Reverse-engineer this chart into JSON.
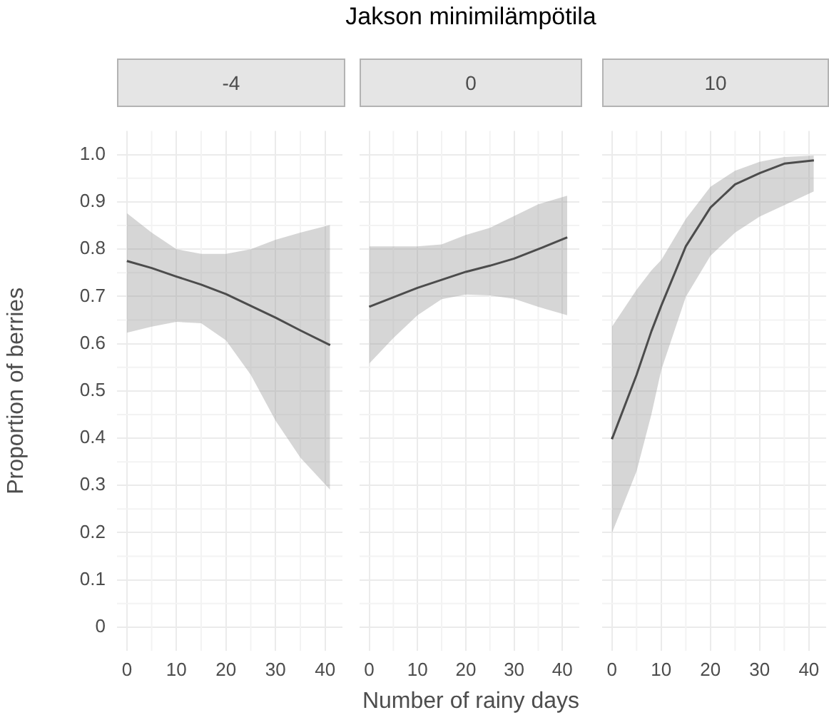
{
  "chart_data": [
    {
      "type": "line",
      "title": "-4",
      "ylabel": "Proportion of berries",
      "grid": true,
      "xlim": [
        -2,
        43.5
      ],
      "xticks": [
        0,
        10,
        20,
        30,
        40
      ],
      "ylim": [
        -0.05,
        1.05
      ],
      "yticks": [
        0,
        0.1,
        0.2,
        0.3,
        0.4,
        0.5,
        0.6,
        0.7,
        0.8,
        0.9,
        {
          "value": 1,
          "label": "1.0"
        }
      ],
      "x": [
        0,
        5,
        10,
        15,
        20,
        25,
        30,
        35,
        41
      ],
      "series": [
        {
          "color": "#1a1a1a",
          "values": [
            0.775,
            0.76,
            0.742,
            0.725,
            0.705,
            0.68,
            0.655,
            0.628,
            0.597
          ],
          "lower": [
            0.623,
            0.636,
            0.646,
            0.643,
            0.607,
            0.534,
            0.437,
            0.359,
            0.291
          ],
          "upper": [
            0.876,
            0.835,
            0.8,
            0.79,
            0.79,
            0.8,
            0.82,
            0.835,
            0.851
          ]
        }
      ]
    },
    {
      "type": "line",
      "title": "0",
      "xlabel": "Number of rainy days",
      "annotations": [
        "Jakson minimilämpötila"
      ],
      "grid": true,
      "tick_labels": "x",
      "xlim": [
        -2,
        43.5
      ],
      "xticks": [
        0,
        10,
        20,
        30,
        40
      ],
      "ylim": [
        -0.05,
        1.05
      ],
      "yticks": [
        0,
        0.1,
        0.2,
        0.3,
        0.4,
        0.5,
        0.6,
        0.7,
        0.8,
        0.9,
        1
      ],
      "x": [
        0,
        5,
        10,
        15,
        20,
        25,
        30,
        35,
        41
      ],
      "series": [
        {
          "color": "#1a1a1a",
          "values": [
            0.678,
            0.698,
            0.718,
            0.735,
            0.752,
            0.765,
            0.78,
            0.8,
            0.825
          ],
          "lower": [
            0.558,
            0.612,
            0.66,
            0.694,
            0.704,
            0.702,
            0.695,
            0.678,
            0.66
          ],
          "upper": [
            0.806,
            0.806,
            0.806,
            0.81,
            0.83,
            0.845,
            0.87,
            0.895,
            0.913
          ]
        }
      ]
    },
    {
      "type": "line",
      "title": "10",
      "grid": true,
      "tick_labels": "x",
      "xlim": [
        -2,
        43.5
      ],
      "xticks": [
        0,
        10,
        20,
        30,
        40
      ],
      "ylim": [
        -0.05,
        1.05
      ],
      "yticks": [
        0,
        0.1,
        0.2,
        0.3,
        0.4,
        0.5,
        0.6,
        0.7,
        0.8,
        0.9,
        1
      ],
      "x": [
        0,
        5,
        8,
        10,
        15,
        20,
        25,
        30,
        35,
        41
      ],
      "series": [
        {
          "color": "#1a1a1a",
          "values": [
            0.398,
            0.534,
            0.626,
            0.68,
            0.806,
            0.888,
            0.937,
            0.961,
            0.981,
            0.988
          ],
          "lower": [
            0.199,
            0.33,
            0.45,
            0.544,
            0.699,
            0.786,
            0.835,
            0.869,
            0.893,
            0.922
          ],
          "upper": [
            0.636,
            0.714,
            0.755,
            0.777,
            0.864,
            0.932,
            0.966,
            0.985,
            0.995,
            0.998
          ]
        }
      ]
    }
  ]
}
